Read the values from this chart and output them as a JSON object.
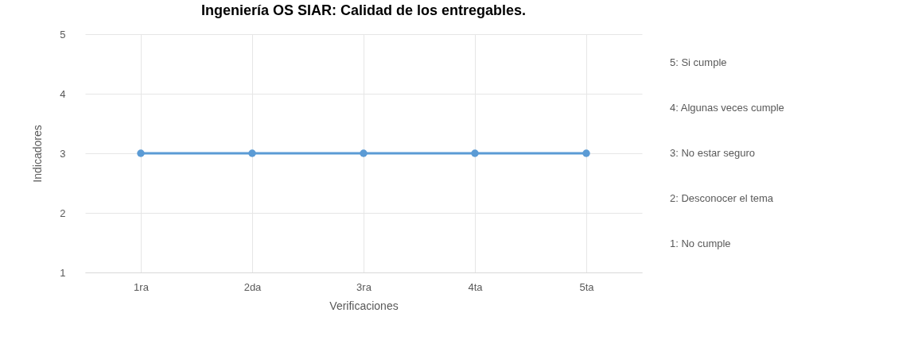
{
  "chart_data": {
    "type": "line",
    "title": "Ingeniería OS SIAR: Calidad de los entregables.",
    "xlabel": "Verificaciones",
    "ylabel": "Indicadores",
    "categories": [
      "1ra",
      "2da",
      "3ra",
      "4ta",
      "5ta"
    ],
    "series": [
      {
        "color": "#5b9bd5",
        "values": [
          3,
          3,
          3,
          3,
          3
        ]
      }
    ],
    "ylim": [
      1,
      5
    ],
    "yticks": [
      1,
      2,
      3,
      4,
      5
    ],
    "grid": true,
    "marker": "circle",
    "line_style": "solid",
    "annotations": [
      "5: Si cumple",
      "4: Algunas veces cumple",
      "3: No estar seguro",
      "2: Desconocer el tema",
      "1: No cumple"
    ]
  }
}
